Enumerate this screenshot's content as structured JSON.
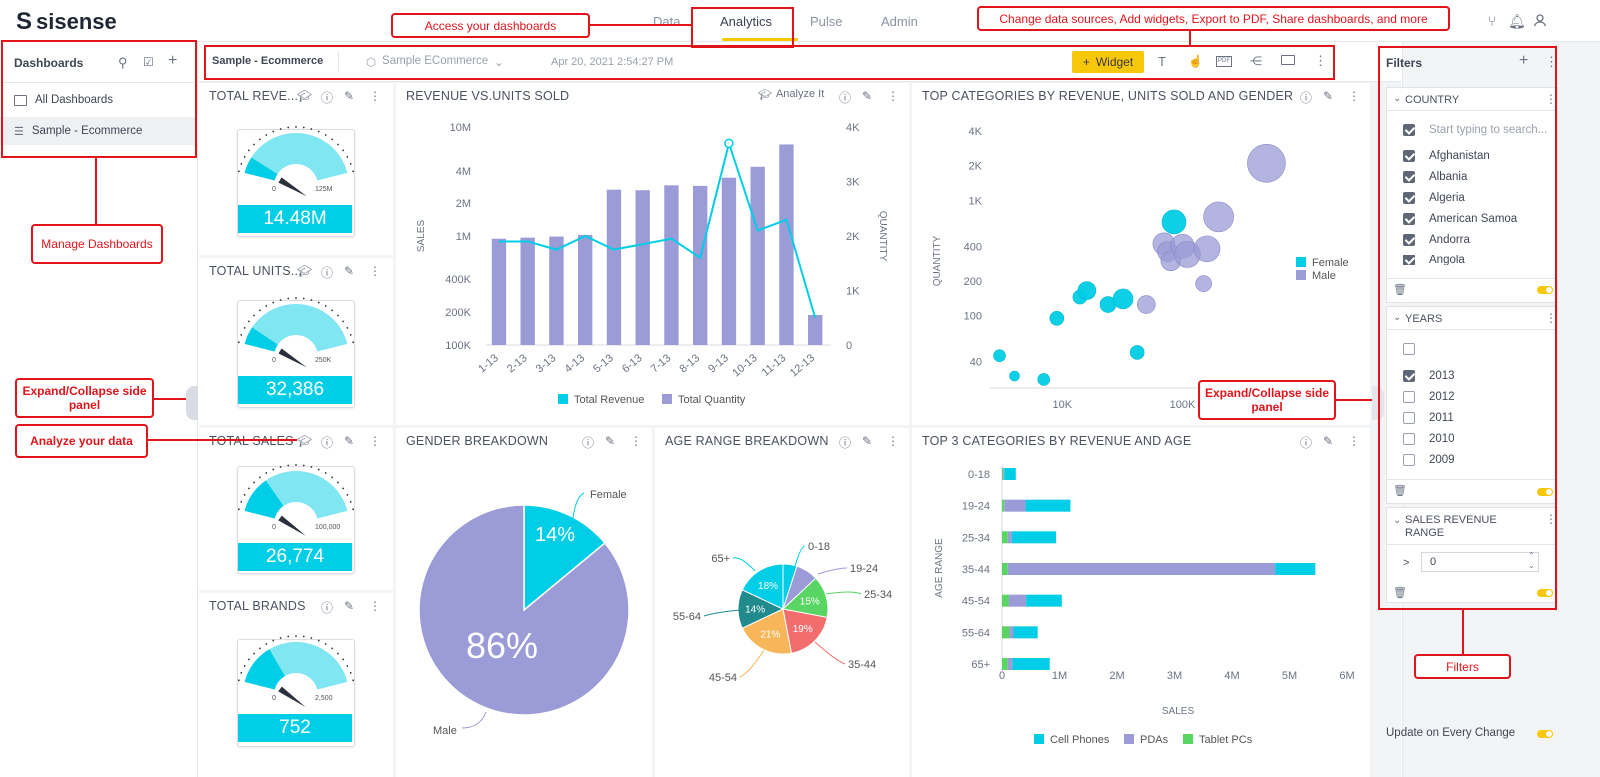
{
  "app": {
    "logo": "sisense"
  },
  "nav": {
    "tabs": [
      "Data",
      "Analytics",
      "Pulse",
      "Admin"
    ],
    "active": "Analytics"
  },
  "left_panel": {
    "title": "Dashboards",
    "items": [
      "All Dashboards",
      "Sample - Ecommerce"
    ]
  },
  "toolbar": {
    "dashboard_name": "Sample - Ecommerce",
    "datasource": "Sample ECommerce",
    "timestamp": "Apr 20, 2021 2:54:27 PM",
    "widget_button": "Widget"
  },
  "indicators": [
    {
      "title": "TOTAL REVE...",
      "value": "14.48M",
      "min": "0",
      "max": "125M",
      "fill": 0.12
    },
    {
      "title": "TOTAL UNITS...",
      "value": "32,386",
      "min": "0",
      "max": "250K",
      "fill": 0.13
    },
    {
      "title": "TOTAL SALES",
      "value": "26,774",
      "min": "0",
      "max": "100,000",
      "fill": 0.27
    },
    {
      "title": "TOTAL BRANDS",
      "value": "752",
      "min": "0",
      "max": "2,500",
      "fill": 0.3
    }
  ],
  "widgets": {
    "revenue_units": {
      "title": "REVENUE vs.UNITS SOLD",
      "analyze": "Analyze It"
    },
    "top_categories": {
      "title": "TOP CATEGORIES BY REVENUE, UNITS SOLD AND GENDER"
    },
    "gender": {
      "title": "GENDER BREAKDOWN"
    },
    "age": {
      "title": "AGE RANGE BREAKDOWN"
    },
    "top3": {
      "title": "TOP 3 CATEGORIES BY REVENUE AND AGE"
    }
  },
  "chart_data": [
    {
      "type": "bar",
      "title": "REVENUE vs.UNITS SOLD",
      "categories": [
        "1-13",
        "2-13",
        "3-13",
        "4-13",
        "5-13",
        "6-13",
        "7-13",
        "8-13",
        "9-13",
        "10-13",
        "11-13",
        "12-13"
      ],
      "ylabel": "SALES",
      "y2label": "QUANTITY",
      "yticks": [
        "10M",
        "4M",
        "2M",
        "1M",
        "400K",
        "200K",
        "100K"
      ],
      "y2ticks": [
        "4K",
        "3K",
        "2K",
        "1K",
        "0"
      ],
      "series": [
        {
          "name": "Total Revenue",
          "type": "line",
          "color": "#00cee6",
          "values": [
            1900,
            1900,
            1750,
            2000,
            1750,
            1850,
            1950,
            1600,
            3700,
            2100,
            2300,
            500
          ]
        },
        {
          "name": "Total Quantity",
          "type": "bar",
          "color": "#9b9bd7",
          "values": [
            1950,
            1970,
            1990,
            2020,
            2850,
            2840,
            2930,
            2920,
            3070,
            3270,
            3680,
            550
          ]
        }
      ],
      "y2lim": [
        0,
        4000
      ]
    },
    {
      "type": "scatter",
      "title": "TOP CATEGORIES BY REVENUE, UNITS SOLD AND GENDER",
      "ylabel": "QUANTITY",
      "yticks": [
        "4K",
        "2K",
        "1K",
        "400",
        "200",
        "100",
        "40"
      ],
      "xticks": [
        "10K",
        "100K"
      ],
      "series": [
        {
          "name": "Female",
          "color": "#00cee6",
          "points": [
            [
              3000,
              45
            ],
            [
              4000,
              30
            ],
            [
              7000,
              28
            ],
            [
              9000,
              95
            ],
            [
              14000,
              145
            ],
            [
              16000,
              165
            ],
            [
              24000,
              125
            ],
            [
              32000,
              140
            ],
            [
              42000,
              48
            ],
            [
              85000,
              650
            ]
          ]
        },
        {
          "name": "Male",
          "color": "#9b9bd7",
          "points": [
            [
              50000,
              125
            ],
            [
              70000,
              420
            ],
            [
              75000,
              360
            ],
            [
              80000,
              300
            ],
            [
              100000,
              400
            ],
            [
              110000,
              340
            ],
            [
              150000,
              190
            ],
            [
              160000,
              380
            ],
            [
              200000,
              720
            ],
            [
              500000,
              2100
            ]
          ]
        }
      ]
    },
    {
      "type": "pie",
      "title": "GENDER BREAKDOWN",
      "slices": [
        {
          "label": "Female",
          "value": 14,
          "display": "14%",
          "color": "#00cee6"
        },
        {
          "label": "Male",
          "value": 86,
          "display": "86%",
          "color": "#9b9bd7"
        }
      ]
    },
    {
      "type": "pie",
      "title": "AGE RANGE BREAKDOWN",
      "slices": [
        {
          "label": "0-18",
          "value": 5,
          "display": "",
          "color": "#00cee6"
        },
        {
          "label": "19-24",
          "value": 8,
          "display": "",
          "color": "#9b9bd7"
        },
        {
          "label": "25-34",
          "value": 15,
          "display": "15%",
          "color": "#58d563"
        },
        {
          "label": "35-44",
          "value": 19,
          "display": "19%",
          "color": "#f26d6d"
        },
        {
          "label": "45-54",
          "value": 21,
          "display": "21%",
          "color": "#f7b65a"
        },
        {
          "label": "55-64",
          "value": 14,
          "display": "14%",
          "color": "#218a8c"
        },
        {
          "label": "65+",
          "value": 18,
          "display": "18%",
          "color": "#00cee6"
        }
      ]
    },
    {
      "type": "bar",
      "orientation": "horizontal",
      "stacked": true,
      "title": "TOP 3 CATEGORIES BY REVENUE AND AGE",
      "ylabel": "AGE RANGE",
      "xlabel": "SALES",
      "categories": [
        "0-18",
        "19-24",
        "25-34",
        "35-44",
        "45-54",
        "55-64",
        "65+"
      ],
      "xticks": [
        "0",
        "1M",
        "2M",
        "3M",
        "4M",
        "5M",
        "6M"
      ],
      "xlim": [
        0,
        6000000
      ],
      "series": [
        {
          "name": "Tablet PCs",
          "color": "#58d563",
          "values": [
            20000,
            40000,
            100000,
            100000,
            120000,
            130000,
            100000
          ]
        },
        {
          "name": "PDAs",
          "color": "#9b9bd7",
          "values": [
            20000,
            370000,
            70000,
            4650000,
            300000,
            70000,
            80000
          ]
        },
        {
          "name": "Cell Phones",
          "color": "#00cee6",
          "values": [
            200000,
            780000,
            770000,
            700000,
            620000,
            420000,
            650000
          ]
        }
      ]
    }
  ],
  "legends": {
    "revenue": [
      "Total Revenue",
      "Total Quantity"
    ],
    "scatter": [
      "Female",
      "Male"
    ],
    "top3": [
      "Cell Phones",
      "PDAs",
      "Tablet PCs"
    ]
  },
  "filters": {
    "title": "Filters",
    "country": {
      "title": "COUNTRY",
      "search_placeholder": "Start typing to search...",
      "items": [
        "Afghanistan",
        "Albania",
        "Algeria",
        "American Samoa",
        "Andorra",
        "Angola"
      ]
    },
    "years": {
      "title": "YEARS",
      "items": [
        "2013",
        "2012",
        "2011",
        "2010",
        "2009"
      ],
      "checked": [
        "2013"
      ]
    },
    "sales_range": {
      "title": "SALES REVENUE RANGE",
      "operator": ">",
      "value": "0"
    },
    "update_label": "Update on Every Change"
  },
  "annotations": {
    "access": "Access your dashboards",
    "change": "Change data sources, Add widgets, Export to PDF, Share dashboards, and more",
    "manage": "Manage Dashboards",
    "expand_left": "Expand/Collapse side panel",
    "analyze": "Analyze your data",
    "expand_right": "Expand/Collapse side panel",
    "filters": "Filters"
  },
  "colors": {
    "accent": "#f7c70a",
    "cyan": "#00cee6",
    "purple": "#9b9bd7",
    "annotation": "#e0151b"
  }
}
